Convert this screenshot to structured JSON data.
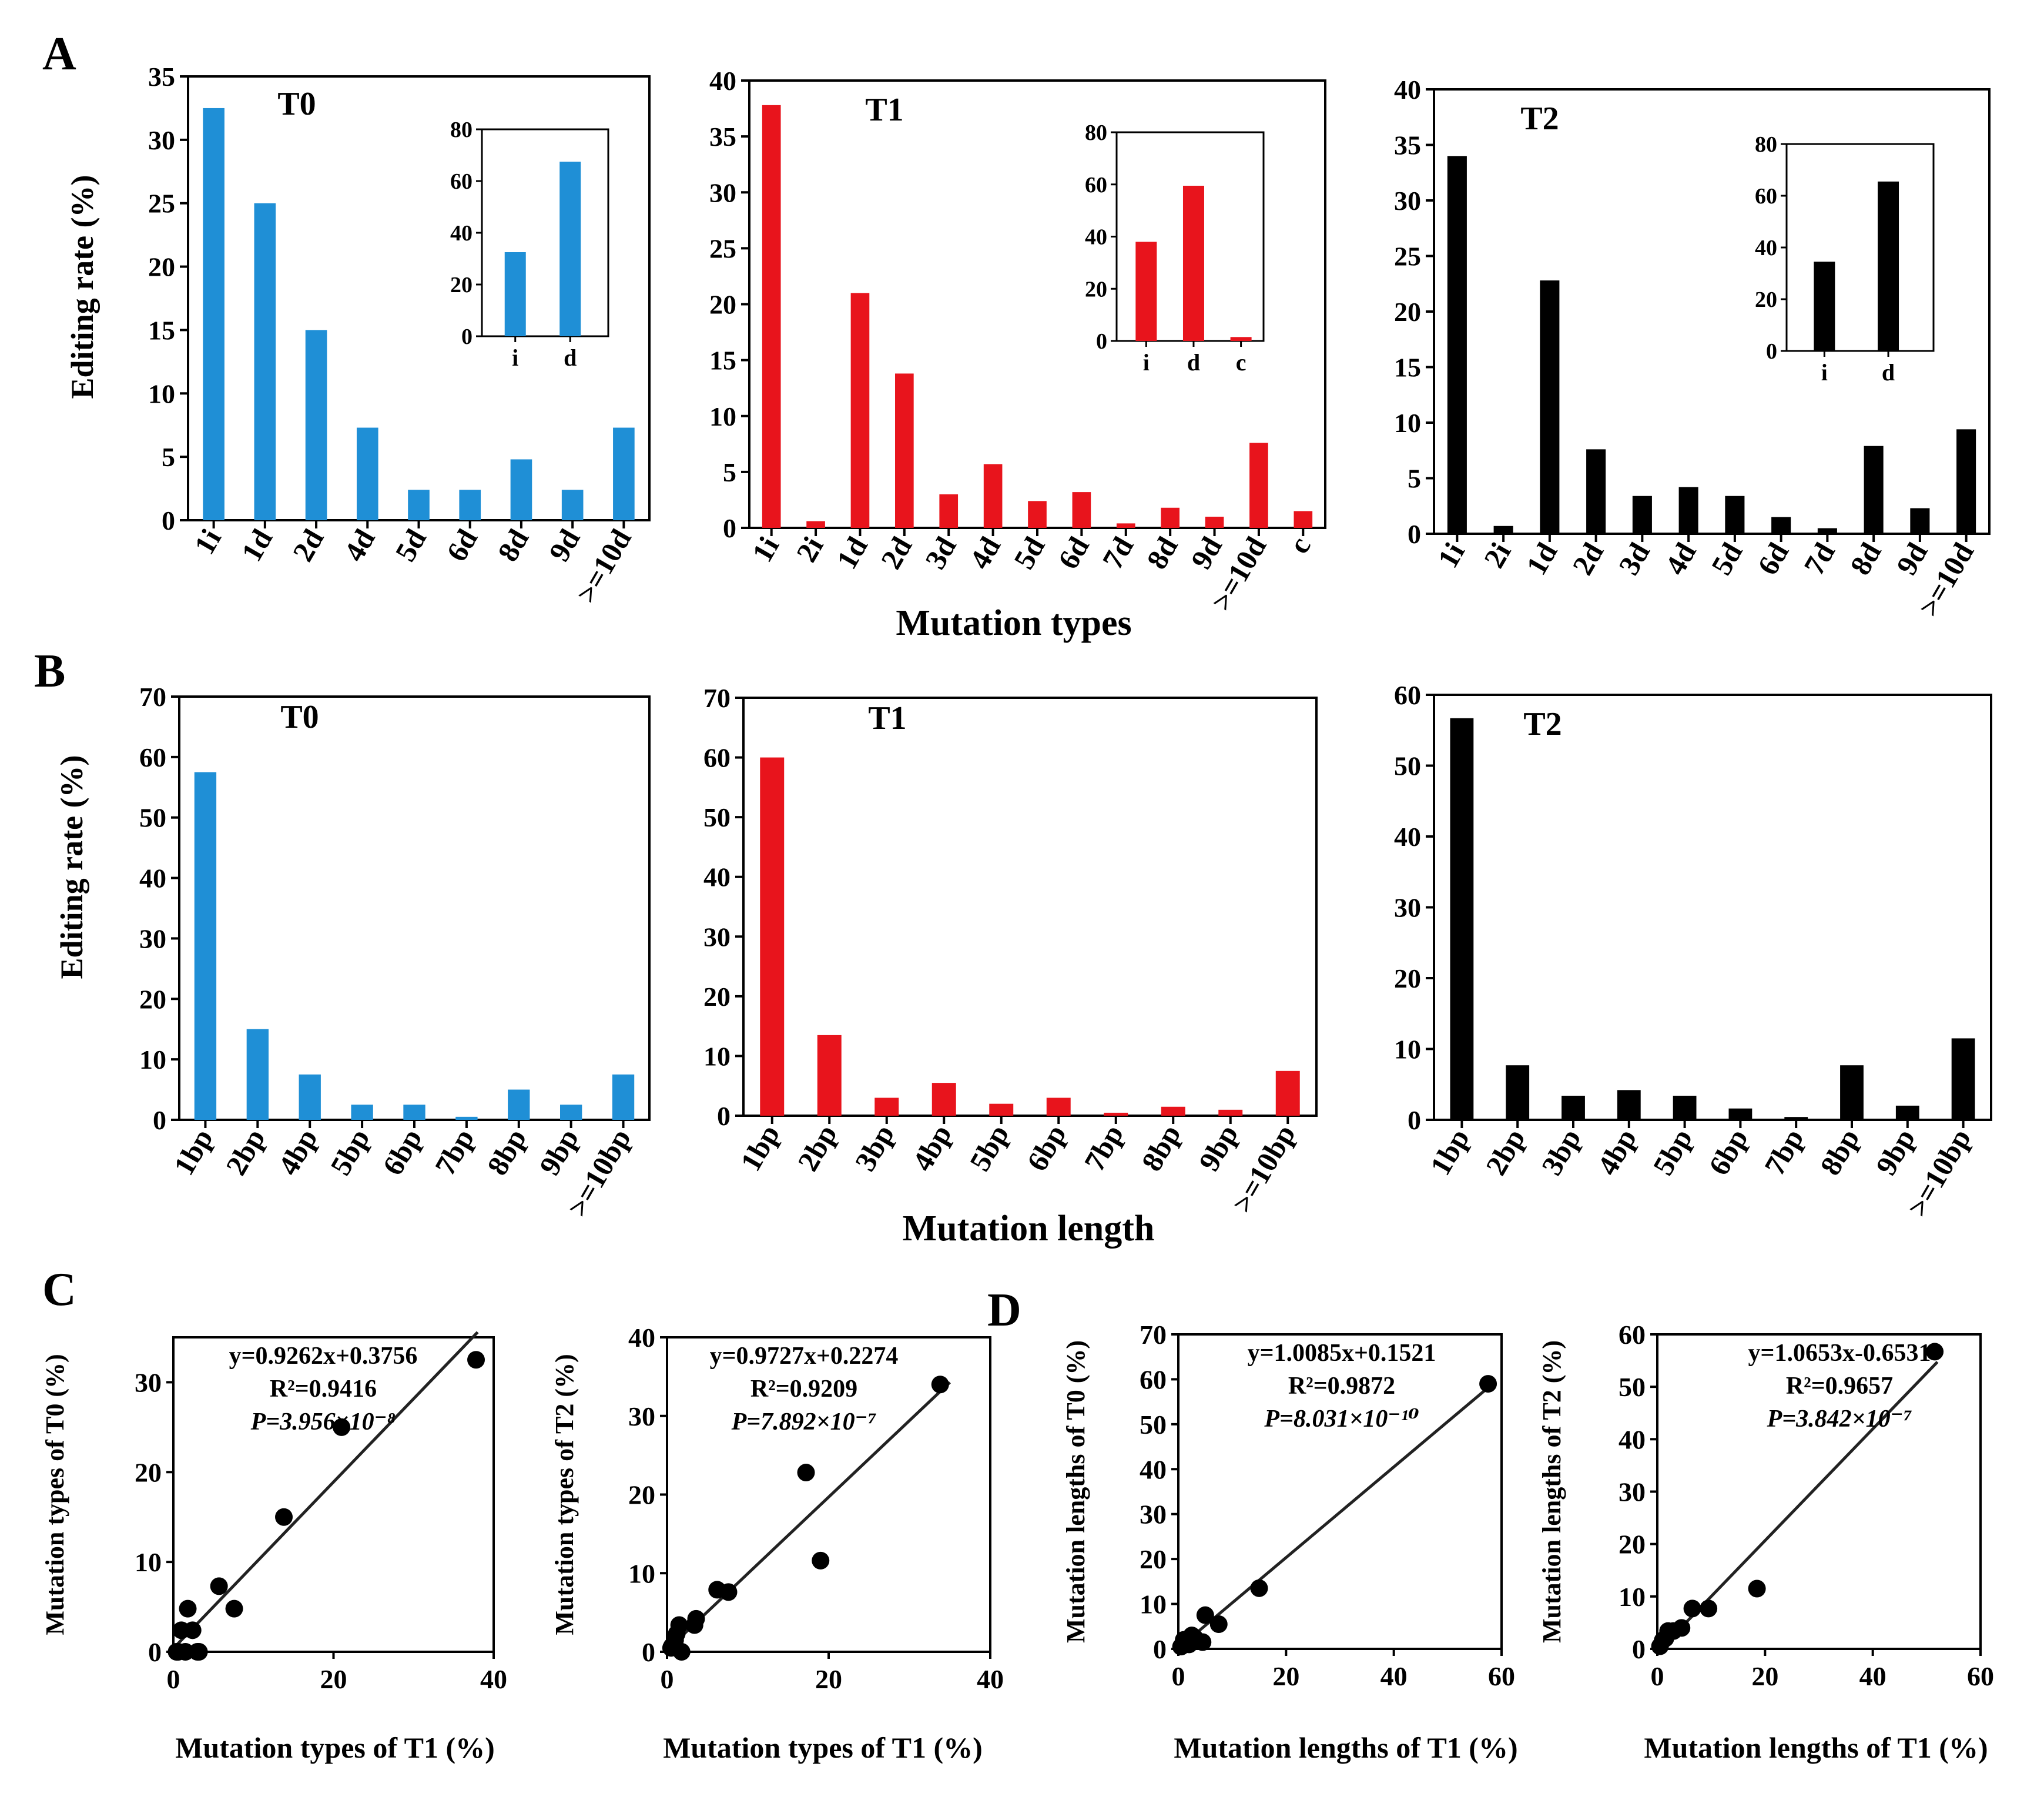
{
  "panel_labels": {
    "a": "A",
    "b": "B",
    "c": "C",
    "d": "D"
  },
  "shared_labels": {
    "editing_rate": "Editing rate (%)",
    "mutation_types": "Mutation types",
    "mutation_length": "Mutation length"
  },
  "colors": {
    "T0": "#1f8fd6",
    "T1": "#e8141c",
    "T2": "#000000"
  },
  "chart_data": [
    {
      "id": "A-T0",
      "type": "bar",
      "title": "T0",
      "color": "#1f8fd6",
      "categories": [
        "1i",
        "1d",
        "2d",
        "4d",
        "5d",
        "6d",
        "8d",
        "9d",
        ">=10d"
      ],
      "values": [
        32.5,
        25,
        15,
        7.3,
        2.4,
        2.4,
        4.8,
        2.4,
        7.3
      ],
      "ylim": [
        0,
        35
      ],
      "yticks": [
        0,
        5,
        10,
        15,
        20,
        25,
        30,
        35
      ],
      "ylabel": "Editing rate (%)",
      "xlabel": "Mutation types",
      "inset": {
        "categories": [
          "i",
          "d"
        ],
        "values": [
          32.5,
          67.5
        ],
        "ylim": [
          0,
          80
        ],
        "yticks": [
          0,
          20,
          40,
          60,
          80
        ]
      }
    },
    {
      "id": "A-T1",
      "type": "bar",
      "title": "T1",
      "color": "#e8141c",
      "categories": [
        "1i",
        "2i",
        "1d",
        "2d",
        "3d",
        "4d",
        "5d",
        "6d",
        "7d",
        "8d",
        "9d",
        ">=10d",
        "c"
      ],
      "values": [
        37.8,
        0.6,
        21,
        13.8,
        3,
        5.7,
        2.4,
        3.2,
        0.4,
        1.8,
        1,
        7.6,
        1.5
      ],
      "ylim": [
        0,
        40
      ],
      "yticks": [
        0,
        5,
        10,
        15,
        20,
        25,
        30,
        35,
        40
      ],
      "ylabel": "",
      "xlabel": "Mutation types",
      "inset": {
        "categories": [
          "i",
          "d",
          "c"
        ],
        "values": [
          38,
          59.5,
          1.5
        ],
        "ylim": [
          0,
          80
        ],
        "yticks": [
          0,
          20,
          40,
          60,
          80
        ]
      }
    },
    {
      "id": "A-T2",
      "type": "bar",
      "title": "T2",
      "color": "#000000",
      "categories": [
        "1i",
        "2i",
        "1d",
        "2d",
        "3d",
        "4d",
        "5d",
        "6d",
        "7d",
        "8d",
        "9d",
        ">=10d"
      ],
      "values": [
        34,
        0.7,
        22.8,
        7.6,
        3.4,
        4.2,
        3.4,
        1.5,
        0.5,
        7.9,
        2.3,
        9.4
      ],
      "ylim": [
        0,
        40
      ],
      "yticks": [
        0,
        5,
        10,
        15,
        20,
        25,
        30,
        35,
        40
      ],
      "ylabel": "",
      "xlabel": "Mutation types",
      "inset": {
        "categories": [
          "i",
          "d"
        ],
        "values": [
          34.5,
          65.5
        ],
        "ylim": [
          0,
          80
        ],
        "yticks": [
          0,
          20,
          40,
          60,
          80
        ]
      }
    },
    {
      "id": "B-T0",
      "type": "bar",
      "title": "T0",
      "color": "#1f8fd6",
      "categories": [
        "1bp",
        "2bp",
        "4bp",
        "5bp",
        "6bp",
        "7bp",
        "8bp",
        "9bp",
        ">=10bp"
      ],
      "values": [
        57.5,
        15,
        7.5,
        2.5,
        2.5,
        0.5,
        5,
        2.5,
        7.5
      ],
      "ylim": [
        0,
        70
      ],
      "yticks": [
        0,
        10,
        20,
        30,
        40,
        50,
        60,
        70
      ],
      "ylabel": "Editing rate (%)",
      "xlabel": "Mutation length"
    },
    {
      "id": "B-T1",
      "type": "bar",
      "title": "T1",
      "color": "#e8141c",
      "categories": [
        "1bp",
        "2bp",
        "3bp",
        "4bp",
        "5bp",
        "6bp",
        "7bp",
        "8bp",
        "9bp",
        ">=10bp"
      ],
      "values": [
        60,
        13.5,
        3,
        5.5,
        2,
        3,
        0.5,
        1.5,
        1,
        7.5
      ],
      "ylim": [
        0,
        70
      ],
      "yticks": [
        0,
        10,
        20,
        30,
        40,
        50,
        60,
        70
      ],
      "ylabel": "",
      "xlabel": "Mutation length"
    },
    {
      "id": "B-T2",
      "type": "bar",
      "title": "T2",
      "color": "#000000",
      "categories": [
        "1bp",
        "2bp",
        "3bp",
        "4bp",
        "5bp",
        "6bp",
        "7bp",
        "8bp",
        "9bp",
        ">=10bp"
      ],
      "values": [
        56.7,
        7.7,
        3.4,
        4.2,
        3.4,
        1.6,
        0.4,
        7.7,
        2,
        11.5
      ],
      "ylim": [
        0,
        60
      ],
      "yticks": [
        0,
        10,
        20,
        30,
        40,
        50,
        60
      ],
      "ylabel": "",
      "xlabel": "Mutation length"
    },
    {
      "id": "C-1",
      "type": "scatter",
      "xlabel": "Mutation types of T1 (%)",
      "ylabel": "Mutation types of T0 (%)",
      "xlim": [
        0,
        40
      ],
      "ylim": [
        0,
        35
      ],
      "xticks": [
        0,
        20,
        40
      ],
      "yticks": [
        0,
        10,
        20,
        30
      ],
      "x": [
        37.8,
        21,
        13.8,
        5.7,
        7.6,
        1.8,
        0.4,
        0.6,
        1,
        1.5,
        2.4,
        3,
        3.2
      ],
      "y": [
        32.5,
        25,
        15,
        7.3,
        4.8,
        4.8,
        0,
        0,
        2.4,
        0,
        2.4,
        0,
        0
      ],
      "fit": {
        "slope": 0.9262,
        "intercept": 0.3756,
        "x_from": 0,
        "x_to": 38
      },
      "eq_line1": "y=0.9262x+0.3756",
      "eq_line2": "R²=0.9416",
      "eq_line3": "P=3.956×10⁻⁸"
    },
    {
      "id": "C-2",
      "type": "scatter",
      "xlabel": "Mutation types of T1 (%)",
      "ylabel": "Mutation types of T2 (%)",
      "xlim": [
        0,
        40
      ],
      "ylim": [
        0,
        40
      ],
      "xticks": [
        0,
        20,
        40
      ],
      "yticks": [
        0,
        10,
        20,
        30,
        40
      ],
      "x": [
        33.8,
        17.2,
        19,
        7.6,
        6.2,
        3.6,
        3.4,
        1.5,
        1,
        0.6,
        0.5,
        1.2,
        1.8
      ],
      "y": [
        34,
        22.8,
        11.6,
        7.6,
        7.9,
        4.2,
        3.4,
        3.4,
        1.5,
        0.7,
        0.5,
        2.3,
        0
      ],
      "fit": {
        "slope": 0.9727,
        "intercept": 0.2274,
        "x_from": 0,
        "x_to": 35
      },
      "eq_line1": "y=0.9727x+0.2274",
      "eq_line2": "R²=0.9209",
      "eq_line3": "P=7.892×10⁻⁷"
    },
    {
      "id": "D-1",
      "type": "scatter",
      "xlabel": "Mutation lengths of T1 (%)",
      "ylabel": "Mutation lengths of T0 (%)",
      "xlim": [
        0,
        60
      ],
      "ylim": [
        0,
        70
      ],
      "xticks": [
        0,
        20,
        40,
        60
      ],
      "yticks": [
        0,
        10,
        20,
        30,
        40,
        50,
        60,
        70
      ],
      "x": [
        57.5,
        15,
        7.5,
        5,
        4.5,
        1,
        2,
        3,
        0.5,
        2.5
      ],
      "y": [
        59,
        13.5,
        5.5,
        7.5,
        1.5,
        2,
        1,
        2.5,
        0.5,
        3
      ],
      "fit": {
        "slope": 1.0085,
        "intercept": 0.1521,
        "x_from": 0,
        "x_to": 58
      },
      "eq_line1": "y=1.0085x+0.1521",
      "eq_line2": "R²=0.9872",
      "eq_line3": "P=8.031×10⁻¹⁰"
    },
    {
      "id": "D-2",
      "type": "scatter",
      "xlabel": "Mutation lengths of T1 (%)",
      "ylabel": "Mutation lengths of T2 (%)",
      "xlim": [
        0,
        60
      ],
      "ylim": [
        0,
        60
      ],
      "xticks": [
        0,
        20,
        40,
        60
      ],
      "yticks": [
        0,
        10,
        20,
        30,
        40,
        50,
        60
      ],
      "x": [
        51.5,
        18.5,
        9.5,
        6.5,
        4.5,
        2,
        1.5,
        0.5,
        3,
        1
      ],
      "y": [
        56.7,
        11.5,
        7.7,
        7.7,
        4,
        3.4,
        2,
        0.5,
        3.4,
        1.6
      ],
      "fit": {
        "slope": 1.0653,
        "intercept": -0.6531,
        "x_from": 1,
        "x_to": 52
      },
      "eq_line1": "y=1.0653x-0.6531",
      "eq_line2": "R²=0.9657",
      "eq_line3": "P=3.842×10⁻⁷"
    }
  ]
}
